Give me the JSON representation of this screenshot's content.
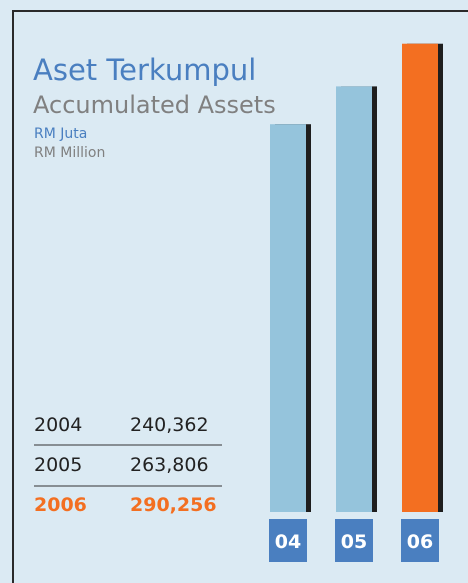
{
  "chart_data": {
    "type": "bar",
    "title": "Aset Terkumpul",
    "subtitle": "Accumulated Assets",
    "unit_label": "RM Juta",
    "unit_label_en": "RM Million",
    "categories": [
      "04",
      "05",
      "06"
    ],
    "years": [
      "2004",
      "2005",
      "2006"
    ],
    "values": [
      240362,
      263806,
      290256
    ],
    "value_labels": [
      "240,362",
      "263,806",
      "290,256"
    ],
    "colors": [
      "#95c4dc",
      "#95c4dc",
      "#f36f21"
    ],
    "ylim": [
      0,
      300000
    ]
  }
}
